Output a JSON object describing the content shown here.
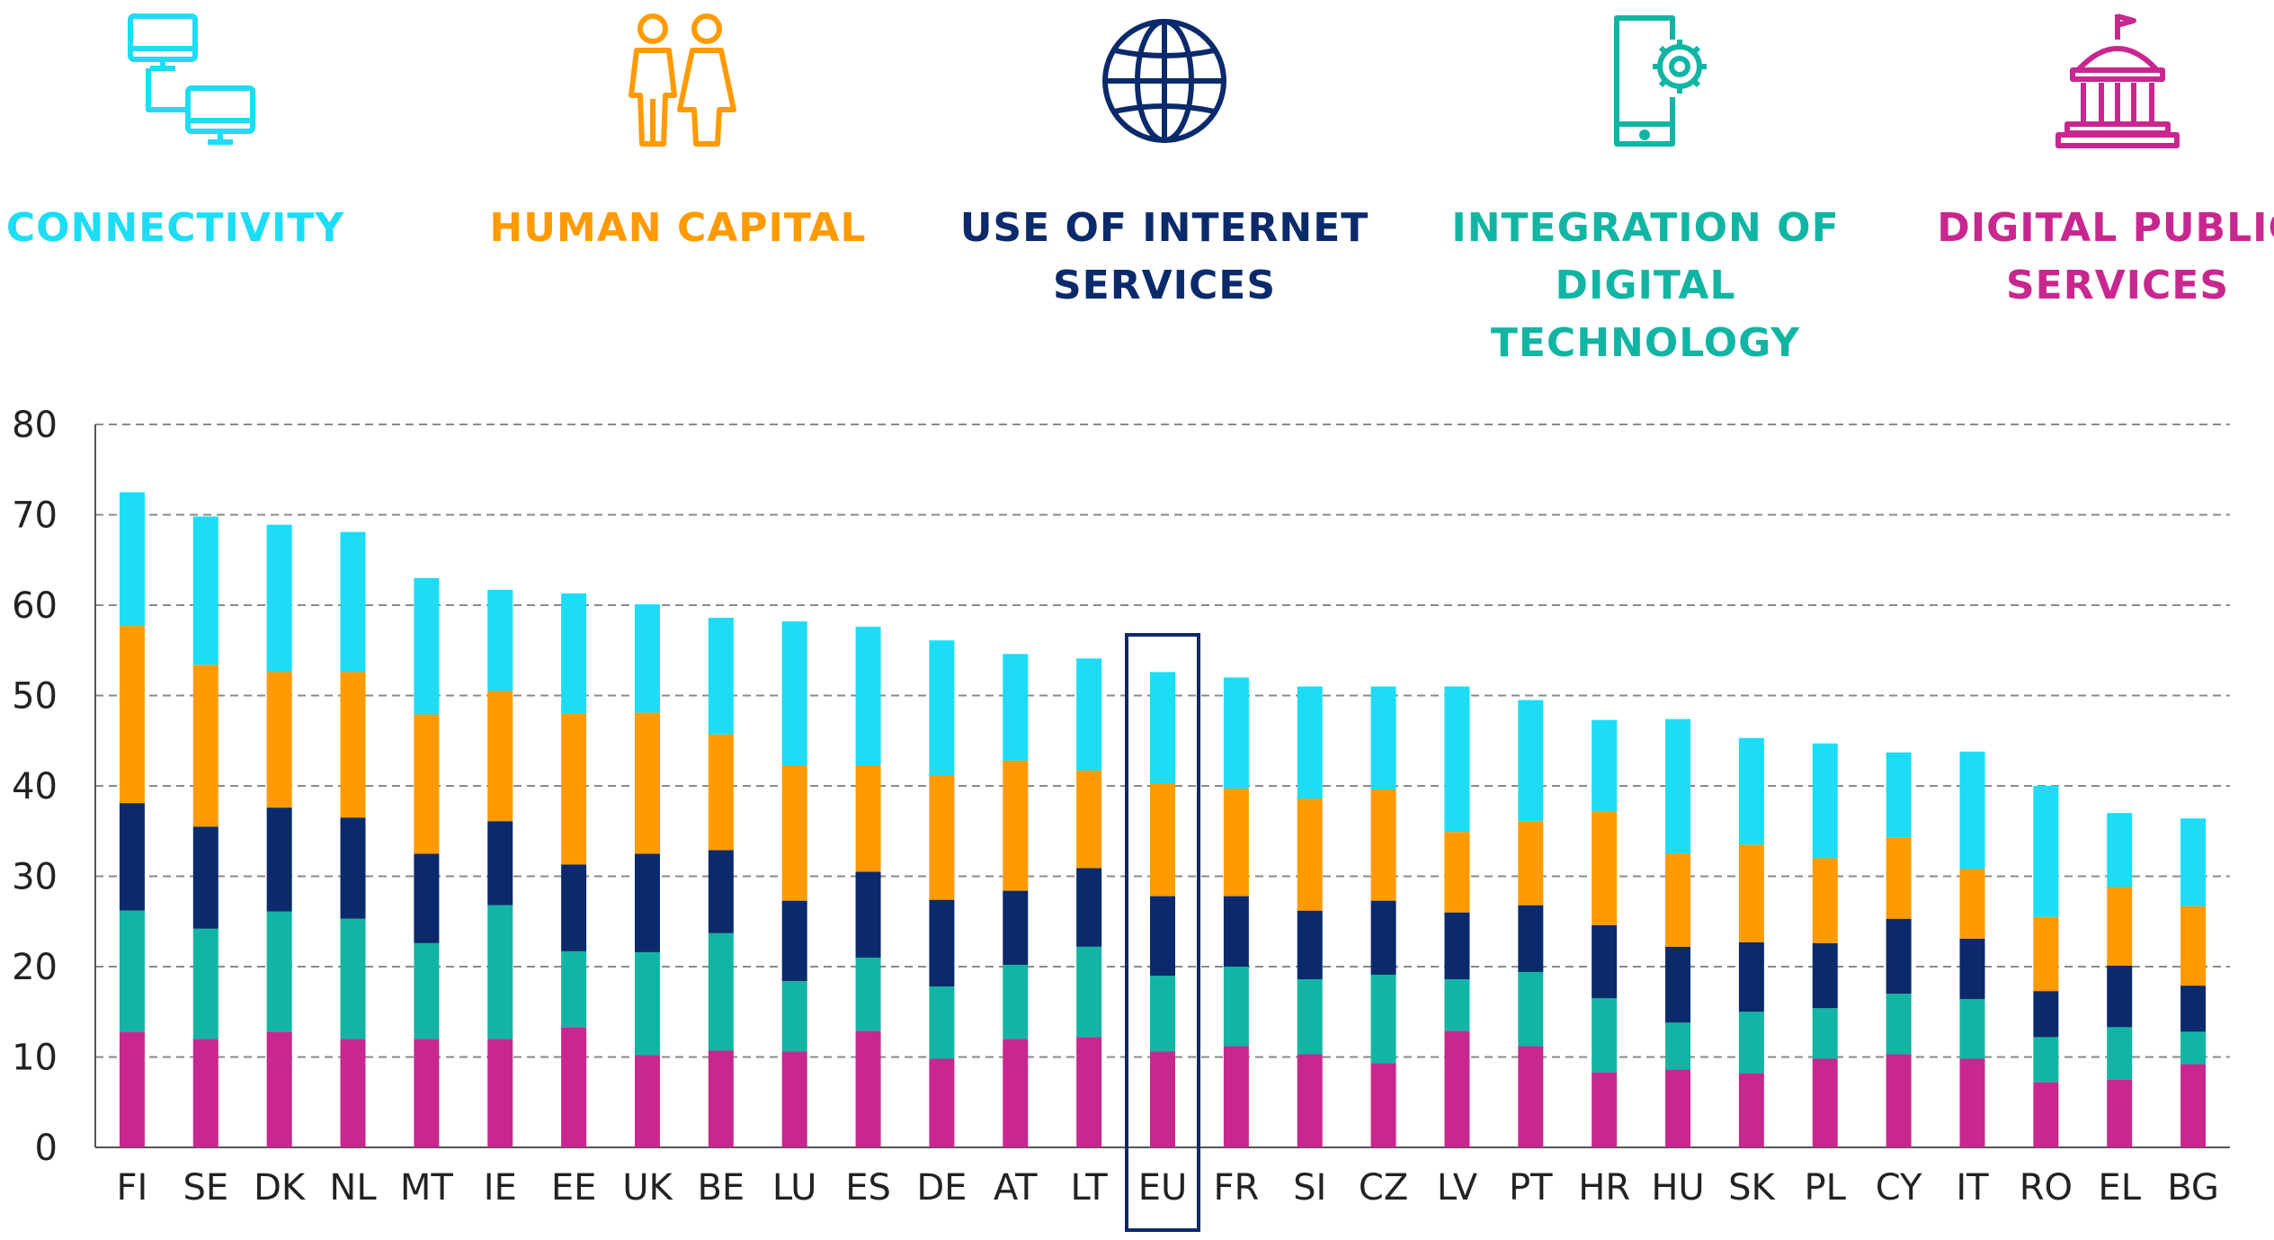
{
  "legend": [
    {
      "name": "connectivity",
      "label": "CONNECTIVITY",
      "icon": "connected-computers-icon",
      "color": "#1CDDF5"
    },
    {
      "name": "human-capital",
      "label": "HUMAN CAPITAL",
      "icon": "people-icon",
      "color": "#FF9A00"
    },
    {
      "name": "use-of-internet",
      "label": "USE OF INTERNET\nSERVICES",
      "icon": "globe-icon",
      "color": "#0B2A6B"
    },
    {
      "name": "integration",
      "label": "INTEGRATION OF\nDIGITAL TECHNOLOGY",
      "icon": "tablet-gear-icon",
      "color": "#12B5A3"
    },
    {
      "name": "digital-public",
      "label": "DIGITAL PUBLIC\nSERVICES",
      "icon": "government-building-icon",
      "color": "#C8278F"
    }
  ],
  "chart_data": {
    "type": "bar",
    "stacked": true,
    "title": "",
    "xlabel": "",
    "ylabel": "",
    "ylim": [
      0,
      80
    ],
    "yticks": [
      0,
      10,
      20,
      30,
      40,
      50,
      60,
      70,
      80
    ],
    "grid": true,
    "highlight": "EU",
    "categories": [
      "FI",
      "SE",
      "DK",
      "NL",
      "MT",
      "IE",
      "EE",
      "UK",
      "BE",
      "LU",
      "ES",
      "DE",
      "AT",
      "LT",
      "EU",
      "FR",
      "SI",
      "CZ",
      "LV",
      "PT",
      "HR",
      "HU",
      "SK",
      "PL",
      "CY",
      "IT",
      "RO",
      "EL",
      "BG"
    ],
    "series": [
      {
        "name": "Digital public services",
        "color": "#C8278F",
        "values": [
          12.8,
          12.0,
          12.8,
          12.0,
          12.0,
          12.0,
          13.3,
          10.2,
          10.7,
          10.6,
          12.9,
          9.8,
          12.0,
          12.2,
          10.6,
          11.2,
          10.3,
          9.3,
          12.9,
          11.2,
          8.3,
          8.6,
          8.2,
          9.8,
          10.3,
          9.8,
          7.2,
          7.5,
          9.2
        ]
      },
      {
        "name": "Integration of digital technology",
        "color": "#12B5A3",
        "values": [
          13.4,
          12.2,
          13.3,
          13.3,
          10.6,
          14.8,
          8.4,
          11.4,
          13.0,
          7.8,
          8.1,
          8.0,
          8.2,
          10.0,
          8.4,
          8.8,
          8.3,
          9.8,
          5.7,
          8.2,
          8.2,
          5.2,
          6.8,
          5.6,
          6.7,
          6.6,
          5.0,
          5.8,
          3.6
        ]
      },
      {
        "name": "Use of internet services",
        "color": "#0B2A6B",
        "values": [
          11.9,
          11.3,
          11.5,
          11.2,
          9.9,
          9.3,
          9.6,
          10.9,
          9.2,
          8.9,
          9.5,
          9.6,
          8.2,
          8.7,
          8.8,
          7.8,
          7.6,
          8.2,
          7.4,
          7.4,
          8.1,
          8.4,
          7.7,
          7.2,
          8.3,
          6.7,
          5.1,
          6.8,
          5.1
        ]
      },
      {
        "name": "Human capital",
        "color": "#FF9A00",
        "values": [
          19.6,
          17.9,
          15.0,
          16.1,
          15.4,
          14.4,
          16.7,
          15.6,
          12.8,
          15.0,
          11.8,
          13.8,
          14.4,
          10.8,
          12.5,
          11.9,
          12.4,
          12.3,
          8.9,
          9.3,
          12.5,
          10.3,
          10.8,
          9.4,
          9.0,
          7.7,
          8.2,
          8.7,
          8.8
        ]
      },
      {
        "name": "Connectivity",
        "color": "#1CDDF5",
        "values": [
          14.8,
          16.4,
          16.3,
          15.5,
          15.1,
          11.2,
          13.3,
          12.0,
          12.9,
          15.9,
          15.3,
          14.9,
          11.8,
          12.4,
          12.3,
          12.3,
          12.4,
          11.4,
          16.1,
          13.4,
          10.2,
          14.9,
          11.8,
          12.7,
          9.4,
          13.0,
          14.5,
          8.2,
          9.7
        ]
      }
    ]
  }
}
